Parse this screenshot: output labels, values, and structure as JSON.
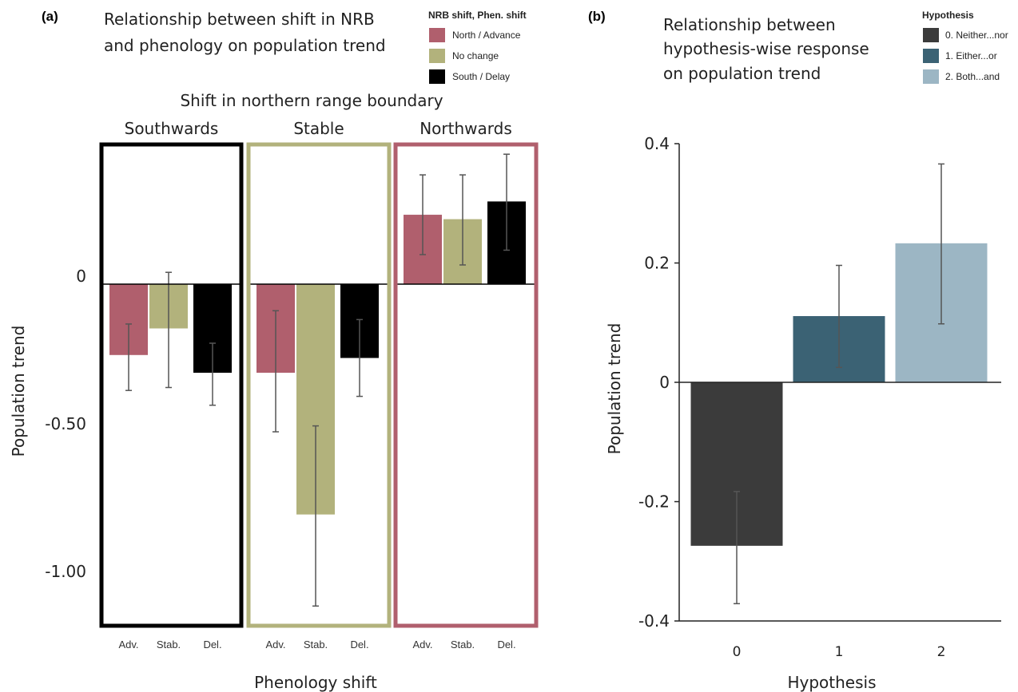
{
  "panel_a": {
    "tag": "(a)",
    "title_lines": [
      "Relationship between shift in NRB",
      "and phenology on population trend"
    ],
    "legend": {
      "title": "NRB shift, Phen. shift",
      "items": [
        {
          "label": "North / Advance",
          "color": "#b05f6d"
        },
        {
          "label": "No change",
          "color": "#b2b27c"
        },
        {
          "label": "South / Delay",
          "color": "#000000"
        }
      ]
    },
    "facet_title": "Shift in northern range boundary",
    "xlabel": "Phenology shift",
    "ylabel": "Population trend"
  },
  "panel_b": {
    "tag": "(b)",
    "title_lines": [
      "Relationship between",
      "hypothesis-wise response",
      "on population trend"
    ],
    "legend": {
      "title": "Hypothesis",
      "items": [
        {
          "label": "0. Neither...nor",
          "color": "#3b3b3b"
        },
        {
          "label": "1. Either...or",
          "color": "#3b6274"
        },
        {
          "label": "2. Both...and",
          "color": "#9cb6c4"
        }
      ]
    },
    "xlabel": "Hypothesis",
    "ylabel": "Population trend"
  },
  "chart_data": [
    {
      "type": "bar",
      "title": "Relationship between shift in NRB and phenology on population trend",
      "facet_label": "Shift in northern range boundary",
      "xlabel": "Phenology shift",
      "ylabel": "Population trend",
      "y_ticks": [
        0,
        -0.5,
        -1.0
      ],
      "y_tick_labels": [
        "0",
        "-0.50",
        "-1.00"
      ],
      "ylim": [
        -1.15,
        0.45
      ],
      "grid": false,
      "legend_position": "top-right",
      "groups": [
        {
          "name": "Southwards",
          "border_color": "#000000",
          "bars": [
            {
              "category": "Adv.",
              "value": -0.24,
              "err_low": -0.36,
              "err_high": -0.135,
              "color": "#b05f6d"
            },
            {
              "category": "Stab.",
              "value": -0.15,
              "err_low": -0.35,
              "err_high": 0.04,
              "color": "#b2b27c"
            },
            {
              "category": "Del.",
              "value": -0.3,
              "err_low": -0.41,
              "err_high": -0.2,
              "color": "#000000"
            }
          ]
        },
        {
          "name": "Stable",
          "border_color": "#b2b27c",
          "bars": [
            {
              "category": "Adv.",
              "value": -0.3,
              "err_low": -0.5,
              "err_high": -0.09,
              "color": "#b05f6d"
            },
            {
              "category": "Stab.",
              "value": -0.78,
              "err_low": -1.09,
              "err_high": -0.48,
              "color": "#b2b27c"
            },
            {
              "category": "Del.",
              "value": -0.25,
              "err_low": -0.38,
              "err_high": -0.12,
              "color": "#000000"
            }
          ]
        },
        {
          "name": "Northwards",
          "border_color": "#b05f6d",
          "bars": [
            {
              "category": "Adv.",
              "value": 0.235,
              "err_low": 0.1,
              "err_high": 0.37,
              "color": "#b05f6d"
            },
            {
              "category": "Stab.",
              "value": 0.22,
              "err_low": 0.065,
              "err_high": 0.37,
              "color": "#b2b27c"
            },
            {
              "category": "Del.",
              "value": 0.28,
              "err_low": 0.115,
              "err_high": 0.44,
              "color": "#000000"
            }
          ]
        }
      ]
    },
    {
      "type": "bar",
      "title": "Relationship between hypothesis-wise response on population trend",
      "xlabel": "Hypothesis",
      "ylabel": "Population trend",
      "categories": [
        "0",
        "1",
        "2"
      ],
      "values": [
        -0.274,
        0.111,
        0.233
      ],
      "err_low": [
        -0.371,
        0.025,
        0.098
      ],
      "err_high": [
        -0.183,
        0.196,
        0.366
      ],
      "colors": [
        "#3b3b3b",
        "#3b6274",
        "#9cb6c4"
      ],
      "y_ticks": [
        0.4,
        0.2,
        0,
        -0.2,
        -0.4
      ],
      "y_tick_labels": [
        "0.4",
        "0.2",
        "0",
        "-0.2",
        "-0.4"
      ],
      "ylim": [
        -0.4,
        0.4
      ],
      "grid": false,
      "legend_position": "top-right"
    }
  ]
}
